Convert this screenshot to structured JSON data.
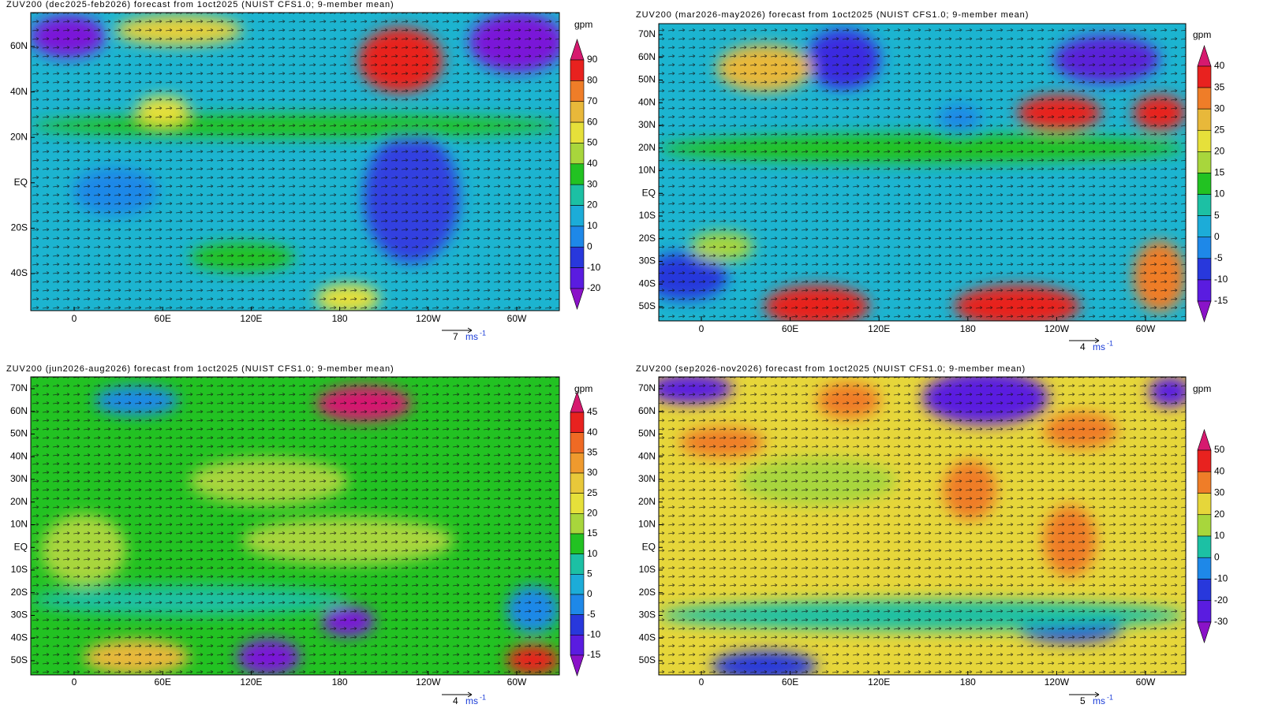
{
  "panels": [
    {
      "title": "ZUV200 (dec2025-feb2026) forecast from 1oct2025 (NUIST CFS1.0; 9-member mean)",
      "lat_labels": [
        "60N",
        "40N",
        "20N",
        "EQ",
        "20S",
        "40S"
      ],
      "lon_labels": [
        "0",
        "60E",
        "120E",
        "180",
        "120W",
        "60W"
      ],
      "colorbar": {
        "unit": "gpm",
        "levels": [
          90,
          80,
          70,
          60,
          50,
          40,
          30,
          20,
          10,
          0,
          -10,
          -20
        ],
        "colors": [
          "#d6196f",
          "#e8221f",
          "#ef7d28",
          "#e8b83a",
          "#e6e03a",
          "#a8d63c",
          "#22c222",
          "#1cc0a4",
          "#1cacd8",
          "#1e88e8",
          "#2838dc",
          "#5a1ce0",
          "#8a12c8"
        ]
      },
      "vector_ref": {
        "value": "7",
        "unit": "ms",
        "exponent": "-1"
      }
    },
    {
      "title": "ZUV200 (mar2026-may2026) forecast from 1oct2025 (NUIST CFS1.0; 9-member mean)",
      "lat_labels": [
        "70N",
        "60N",
        "50N",
        "40N",
        "30N",
        "20N",
        "10N",
        "EQ",
        "10S",
        "20S",
        "30S",
        "40S",
        "50S"
      ],
      "lon_labels": [
        "0",
        "60E",
        "120E",
        "180",
        "120W",
        "60W"
      ],
      "colorbar": {
        "unit": "gpm",
        "levels": [
          40,
          35,
          30,
          25,
          20,
          15,
          10,
          5,
          0,
          -5,
          -10,
          -15
        ],
        "colors": [
          "#d6196f",
          "#e8221f",
          "#ef7d28",
          "#e8b83a",
          "#e6e03a",
          "#a8d63c",
          "#22c222",
          "#1cc0a4",
          "#1cacd8",
          "#1e88e8",
          "#2838dc",
          "#5a1ce0",
          "#8a12c8"
        ]
      },
      "vector_ref": {
        "value": "4",
        "unit": "ms",
        "exponent": "-1"
      }
    },
    {
      "title": "ZUV200 (jun2026-aug2026) forecast from 1oct2025 (NUIST CFS1.0; 9-member mean)",
      "lat_labels": [
        "70N",
        "60N",
        "50N",
        "40N",
        "30N",
        "20N",
        "10N",
        "EQ",
        "10S",
        "20S",
        "30S",
        "40S",
        "50S"
      ],
      "lon_labels": [
        "0",
        "60E",
        "120E",
        "180",
        "120W",
        "60W"
      ],
      "colorbar": {
        "unit": "gpm",
        "levels": [
          45,
          40,
          35,
          30,
          25,
          20,
          15,
          10,
          5,
          0,
          -5,
          -10,
          -15
        ],
        "colors": [
          "#d6196f",
          "#e8221f",
          "#ef6a24",
          "#ef9a2e",
          "#e8c83a",
          "#e6e03a",
          "#a8d63c",
          "#22c222",
          "#1cc0a4",
          "#1cacd8",
          "#1e88e8",
          "#2838dc",
          "#5a1ce0",
          "#8a12c8"
        ]
      },
      "vector_ref": {
        "value": "4",
        "unit": "ms",
        "exponent": "-1"
      }
    },
    {
      "title": "ZUV200 (sep2026-nov2026) forecast from 1oct2025 (NUIST CFS1.0; 9-member mean)",
      "lat_labels": [
        "70N",
        "60N",
        "50N",
        "40N",
        "30N",
        "20N",
        "10N",
        "EQ",
        "10S",
        "20S",
        "30S",
        "40S",
        "50S"
      ],
      "lon_labels": [
        "0",
        "60E",
        "120E",
        "180",
        "120W",
        "60W"
      ],
      "colorbar": {
        "unit": "gpm",
        "levels": [
          50,
          40,
          30,
          20,
          10,
          0,
          -10,
          -20,
          -30
        ],
        "colors": [
          "#d6196f",
          "#e8221f",
          "#ef7d28",
          "#e6d63a",
          "#a8d63c",
          "#1cc0a4",
          "#1e88e8",
          "#2838dc",
          "#5a1ce0",
          "#8a12c8"
        ]
      },
      "vector_ref": {
        "value": "5",
        "unit": "ms",
        "exponent": "-1"
      }
    }
  ]
}
